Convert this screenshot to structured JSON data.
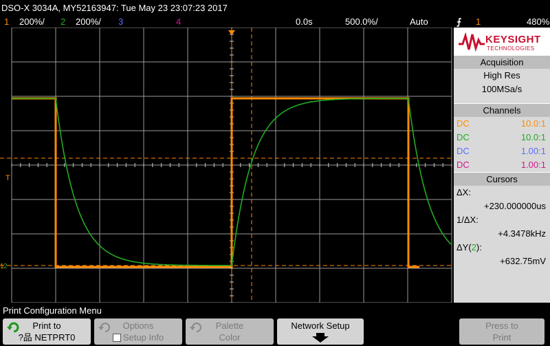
{
  "header": {
    "title": "DSO-X 3034A, MY52163947: Tue May 23 23:07:23 2017",
    "ch1_num": "1",
    "ch1_scale": "200%/",
    "ch2_num": "2",
    "ch2_scale": "200%/",
    "ch3_num": "3",
    "ch4_num": "4",
    "time_offset": "0.0s",
    "time_scale": "500.0%/",
    "trigger_mode": "Auto",
    "trigger_slope": "⨍",
    "trigger_source": "1",
    "trigger_level": "480%"
  },
  "logo": {
    "brand": "KEYSIGHT",
    "sub": "TECHNOLOGIES"
  },
  "acquisition": {
    "title": "Acquisition",
    "mode": "High Res",
    "rate": "100MSa/s"
  },
  "channels": {
    "title": "Channels",
    "items": [
      {
        "coupling": "DC",
        "probe": "10.0:1",
        "color": "#ff8c00"
      },
      {
        "coupling": "DC",
        "probe": "10.0:1",
        "color": "#22aa22"
      },
      {
        "coupling": "DC",
        "probe": "1.00:1",
        "color": "#5a6cff"
      },
      {
        "coupling": "DC",
        "probe": "1.00:1",
        "color": "#d0178a"
      }
    ]
  },
  "cursors": {
    "title": "Cursors",
    "dx_label": "ΔX:",
    "dx_value": "+230.000000us",
    "inv_label": "1/ΔX:",
    "inv_value": "+4.3478kHz",
    "dy_label_prefix": "ΔY(",
    "dy_channel": "2",
    "dy_label_suffix": "):",
    "dy_value": "+632.75mV"
  },
  "menu": {
    "title": "Print Configuration Menu",
    "print_to_label": "Print to",
    "print_to_value": "NETPRT0",
    "print_to_prefix": "?品",
    "options_label": "Options",
    "setup_info_label": "Setup Info",
    "palette_label": "Palette",
    "palette_value": "Color",
    "network_setup_label": "Network Setup",
    "press_to_print_l1": "Press to",
    "press_to_print_l2": "Print"
  },
  "colors": {
    "ch1": "#ff8c00",
    "ch2": "#22aa22",
    "ch3": "#5a6cff",
    "ch4": "#d0178a",
    "cursor": "#ff8c00"
  }
}
